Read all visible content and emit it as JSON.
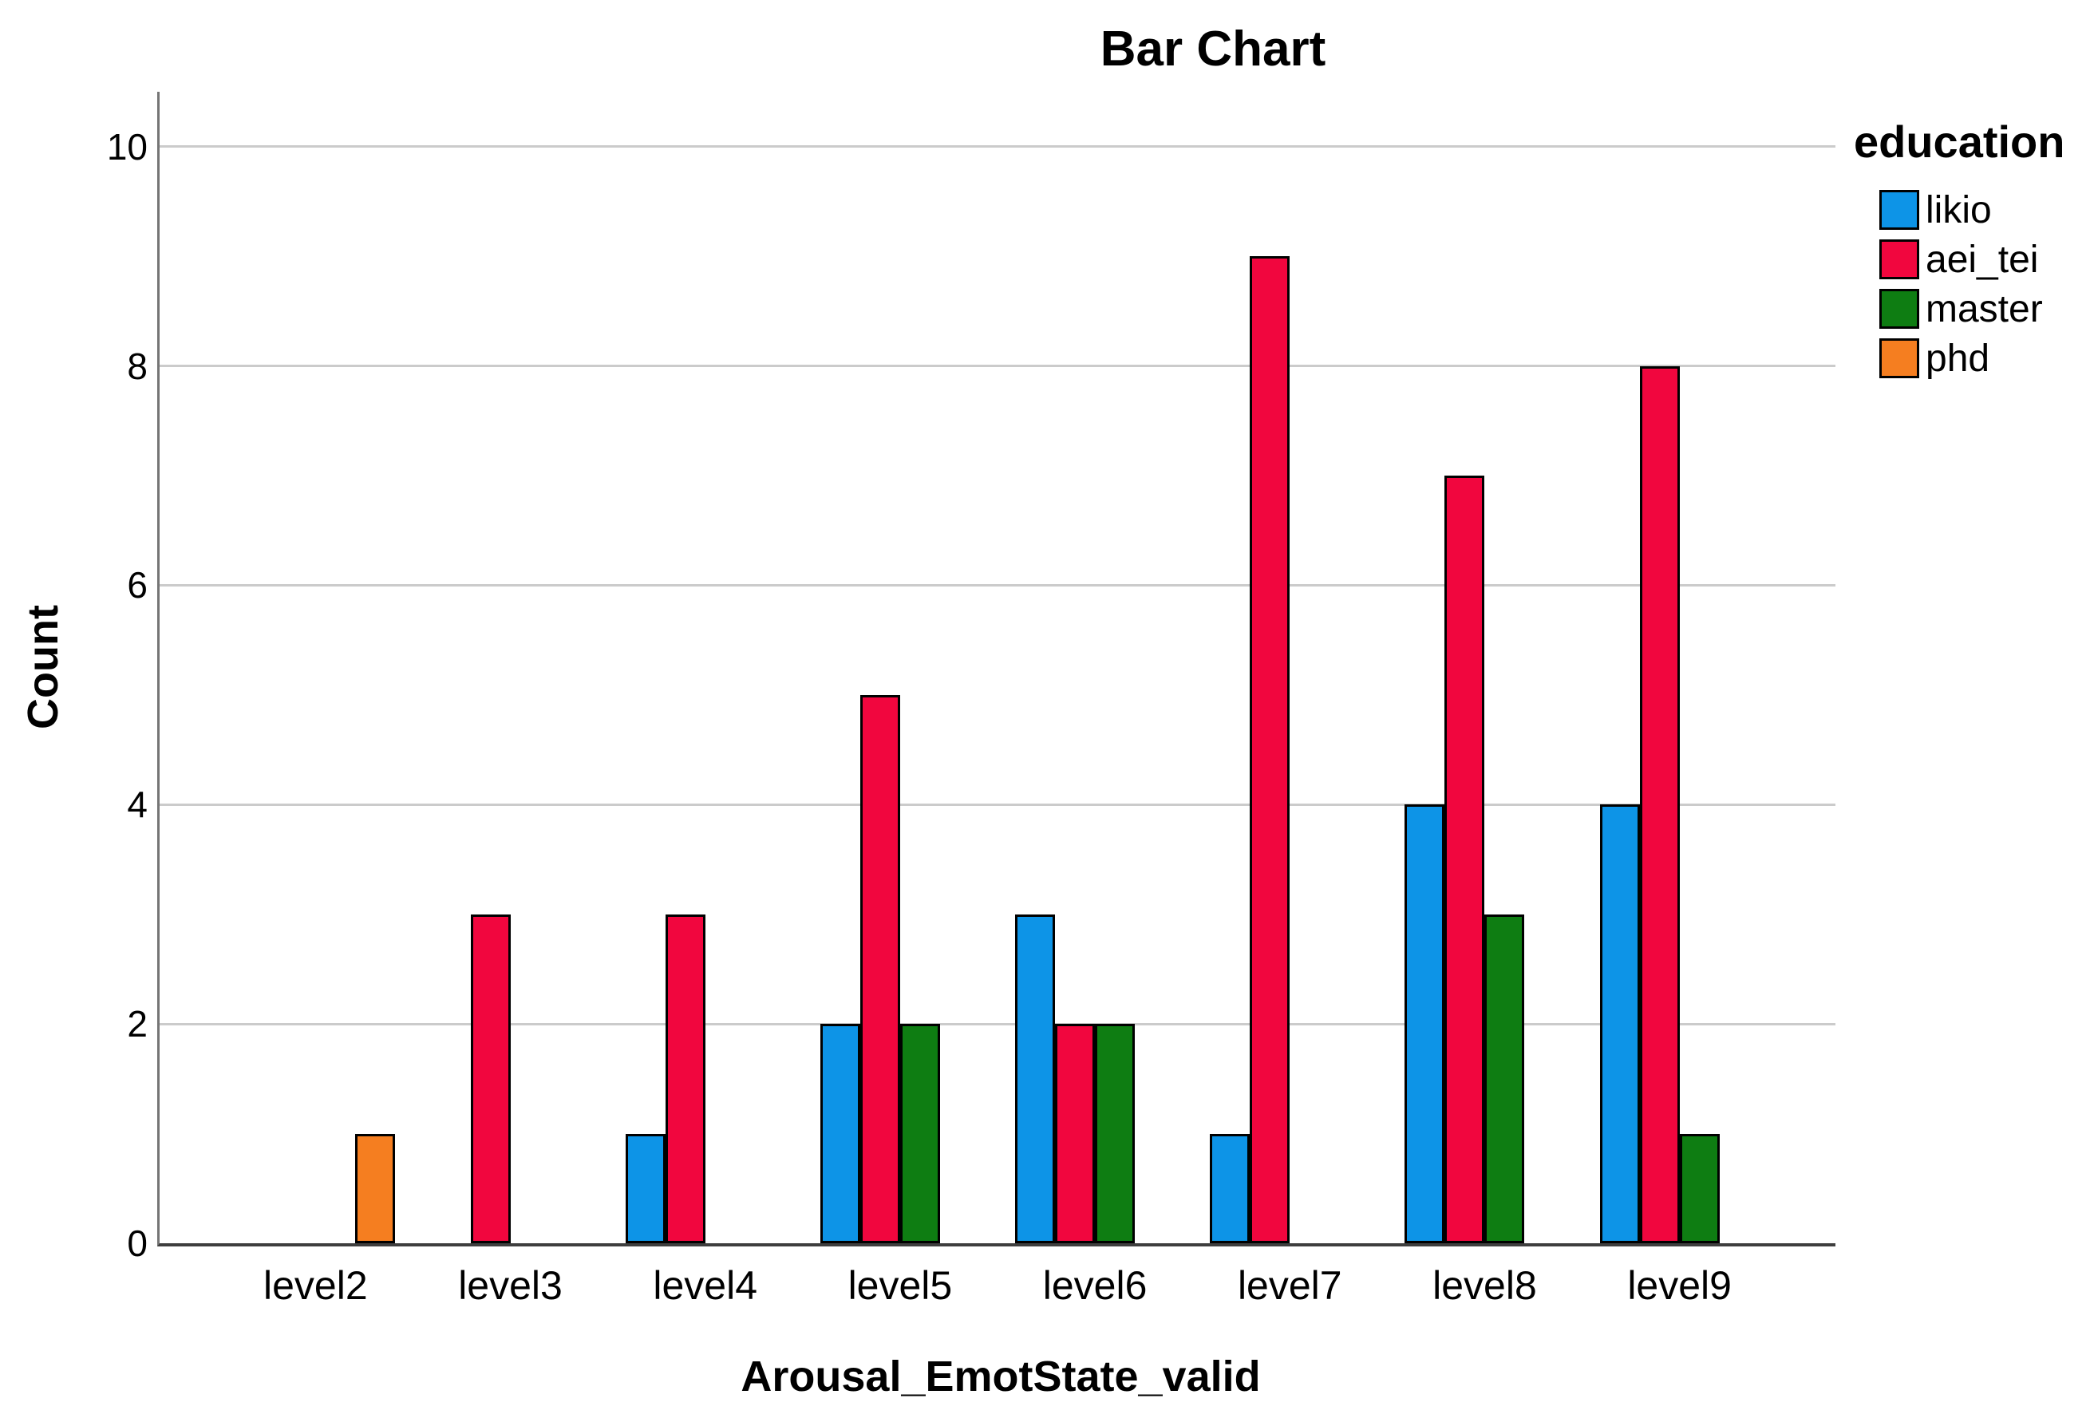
{
  "chart_data": {
    "type": "bar",
    "title": "Bar Chart",
    "xlabel": "Arousal_EmotState_valid",
    "ylabel": "Count",
    "categories": [
      "level2",
      "level3",
      "level4",
      "level5",
      "level6",
      "level7",
      "level8",
      "level9"
    ],
    "series": [
      {
        "name": "likio",
        "color": "#0d94e7",
        "values": [
          0,
          0,
          1,
          2,
          3,
          1,
          4,
          4
        ]
      },
      {
        "name": "aei_tei",
        "color": "#f1063e",
        "values": [
          0,
          3,
          3,
          5,
          2,
          9,
          7,
          8
        ]
      },
      {
        "name": "master",
        "color": "#0e7d12",
        "values": [
          0,
          0,
          0,
          2,
          2,
          0,
          3,
          1
        ]
      },
      {
        "name": "phd",
        "color": "#f57e20",
        "values": [
          1,
          0,
          0,
          0,
          0,
          0,
          0,
          0
        ]
      }
    ],
    "ylim": [
      0,
      10.5
    ],
    "yticks": [
      0,
      2,
      4,
      6,
      8,
      10
    ],
    "grid": true,
    "bar_outline_color": "#000000",
    "gridline_color": "#cbcbcb",
    "legend_title": "education",
    "legend_position": "right"
  }
}
